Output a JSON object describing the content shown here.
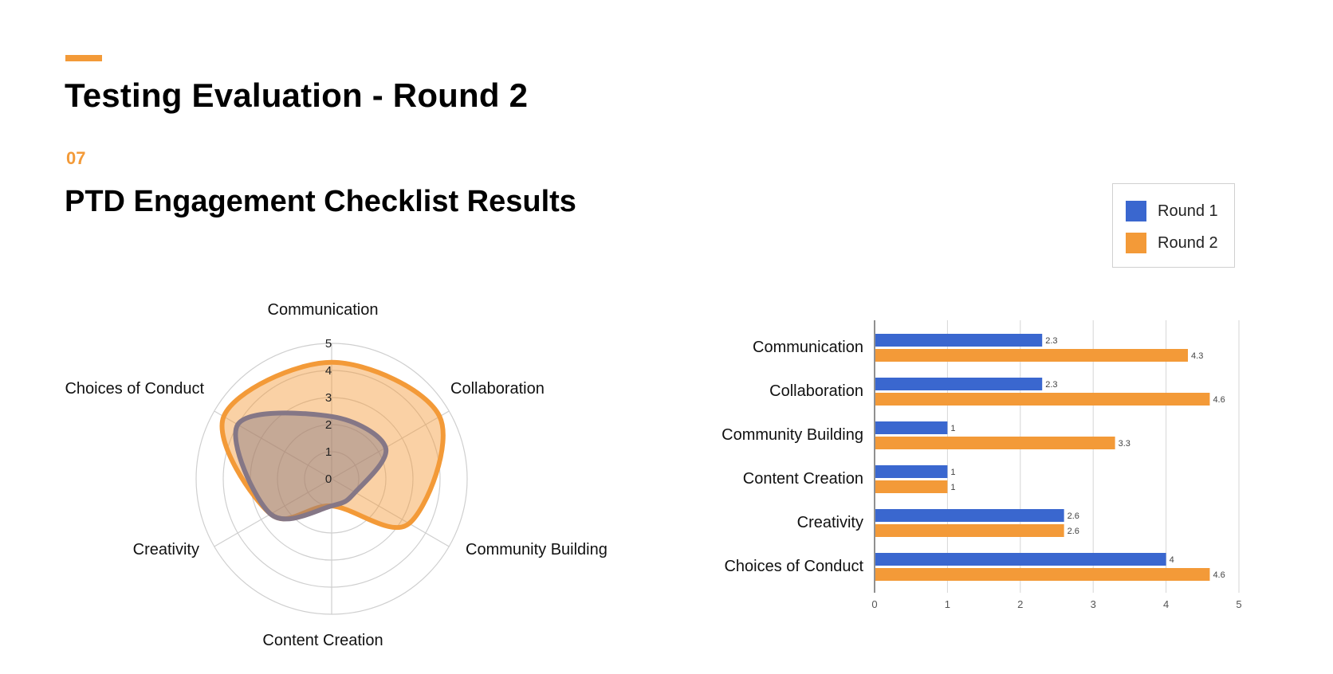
{
  "slide": {
    "title": "Testing Evaluation - Round 2",
    "section_number": "07",
    "section_title": "PTD Engagement Checklist Results"
  },
  "legend": {
    "items": [
      {
        "label": "Round 1",
        "color": "#3a67cf"
      },
      {
        "label": "Round 2",
        "color": "#f39a38"
      }
    ]
  },
  "chart_data": [
    {
      "type": "radar",
      "categories": [
        "Communication",
        "Collaboration",
        "Community Building",
        "Content Creation",
        "Creativity",
        "Choices of Conduct"
      ],
      "tick_labels": [
        "0",
        "1",
        "2",
        "3",
        "4",
        "5"
      ],
      "rlim": [
        0,
        5
      ],
      "series": [
        {
          "name": "Round 1",
          "values": [
            2.3,
            2.3,
            1,
            1,
            2.6,
            4
          ],
          "color": "#857786"
        },
        {
          "name": "Round 2",
          "values": [
            4.3,
            4.6,
            3.3,
            1,
            2.6,
            4.6
          ],
          "color": "#f39a38"
        }
      ]
    },
    {
      "type": "bar",
      "orientation": "horizontal",
      "categories": [
        "Communication",
        "Collaboration",
        "Community Building",
        "Content Creation",
        "Creativity",
        "Choices of Conduct"
      ],
      "x_ticks": [
        "0",
        "1",
        "2",
        "3",
        "4",
        "5"
      ],
      "xlim": [
        0,
        5
      ],
      "grid": true,
      "legend_position": "top-right",
      "series": [
        {
          "name": "Round 1",
          "values": [
            2.3,
            2.3,
            1,
            1,
            2.6,
            4
          ],
          "labels": [
            "2.3",
            "2.3",
            "1",
            "1",
            "2.6",
            "4"
          ],
          "color": "#3a67cf"
        },
        {
          "name": "Round 2",
          "values": [
            4.3,
            4.6,
            3.3,
            1,
            2.6,
            4.6
          ],
          "labels": [
            "4.3",
            "4.6",
            "3.3",
            "1",
            "2.6",
            "4.6"
          ],
          "color": "#f39a38"
        }
      ]
    }
  ]
}
